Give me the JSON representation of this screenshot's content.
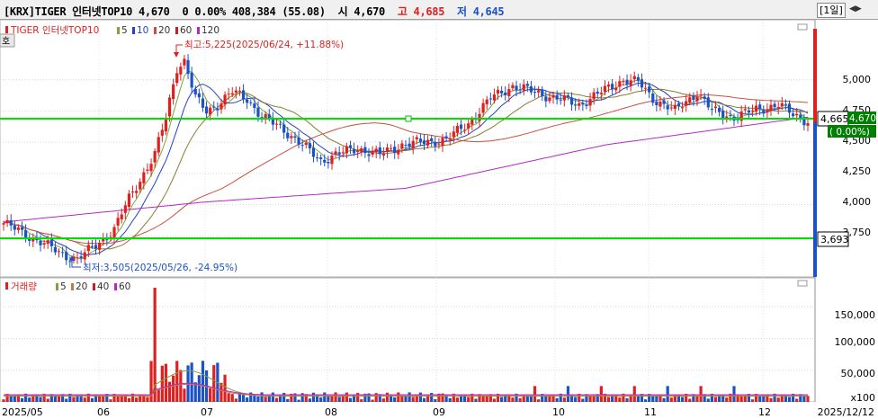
{
  "header": {
    "market": "[KRX]",
    "name": "TIGER 인터넷TOP10",
    "price": "4,670",
    "change": "0",
    "change_pct": "0.00%",
    "volume": "408,384",
    "volume_ratio": "(55.08)",
    "open_label": "시",
    "open": "4,670",
    "high_label": "고",
    "high": "4,685",
    "low_label": "저",
    "low": "4,645",
    "period": "[1일]",
    "arrows": "◀▶"
  },
  "price_panel": {
    "quote_tab": "호",
    "legend": {
      "title": "TIGER 인터넷TOP10",
      "ma": [
        {
          "label": "5",
          "color": "#7fa33c"
        },
        {
          "label": "10",
          "color": "#2740c8"
        },
        {
          "label": "20",
          "color": "#c8503c"
        },
        {
          "label": "60",
          "color": "#c81e1e"
        },
        {
          "label": "120",
          "color": "#b428c8"
        }
      ]
    },
    "max_annotation": "최고:5,225(2025/06/24, +11.88%)",
    "min_annotation": "최저:3,505(2025/05/26, -24.95%)",
    "yticks": [
      "5,000",
      "4,750",
      "4,500",
      "4,250",
      "4,000",
      "3,750"
    ],
    "current_label": "4,665",
    "current_green": "4,670",
    "current_pct": "( 0.00%)",
    "low_line_label": "3,693"
  },
  "volume_panel": {
    "legend": {
      "title": "거래량",
      "ma": [
        {
          "label": "5",
          "color": "#7fa33c"
        },
        {
          "label": "20",
          "color": "#c8783c"
        },
        {
          "label": "40",
          "color": "#c81e1e"
        },
        {
          "label": "60",
          "color": "#b428c8"
        }
      ]
    },
    "yticks": [
      "150,000",
      "100,000",
      "50,000",
      "x100"
    ]
  },
  "x_axis": {
    "labels": [
      "2025/05",
      "06",
      "07",
      "08",
      "09",
      "10",
      "11",
      "12",
      "2025/12/12"
    ]
  },
  "colors": {
    "up": "#e0201f",
    "down": "#1a52c8",
    "hline": "#00e000",
    "ma120": "#b428c8",
    "ma60": "#c8503c"
  },
  "chart_data": {
    "type": "candlestick",
    "title": "TIGER 인터넷TOP10",
    "x_range": [
      "2025/05",
      "2025/12/12"
    ],
    "ylim": [
      3500,
      5250
    ],
    "volume_ylim": [
      0,
      180000
    ],
    "horizontal_lines": [
      4670,
      3693
    ],
    "max": {
      "value": 5225,
      "date": "2025/06/24",
      "pct": "+11.88%"
    },
    "min": {
      "value": 3505,
      "date": "2025/05/26",
      "pct": "-24.95%"
    },
    "close_path": [
      {
        "month": "2025/05 start",
        "close": 3850
      },
      {
        "month": "2025/05/26",
        "close": 3560
      },
      {
        "month": "2025/06 start",
        "close": 3780
      },
      {
        "month": "2025/06/24",
        "close": 5150
      },
      {
        "month": "2025/07 start",
        "close": 4800
      },
      {
        "month": "2025/07 mid",
        "close": 4900
      },
      {
        "month": "2025/08 start",
        "close": 4350
      },
      {
        "month": "2025/09 start",
        "close": 4500
      },
      {
        "month": "2025/10 start",
        "close": 4950
      },
      {
        "month": "2025/11 start",
        "close": 4980
      },
      {
        "month": "2025/12 start",
        "close": 4720
      },
      {
        "month": "2025/12/12",
        "close": 4670
      }
    ],
    "ma120_path": [
      {
        "month": "2025/05",
        "value": 3860
      },
      {
        "month": "2025/07",
        "value": 4020
      },
      {
        "month": "2025/09",
        "value": 4130
      },
      {
        "month": "2025/11",
        "value": 4480
      },
      {
        "month": "2025/12/12",
        "value": 4700
      }
    ],
    "volume_peak": {
      "date": "2025/06 start",
      "value": 180000
    }
  }
}
